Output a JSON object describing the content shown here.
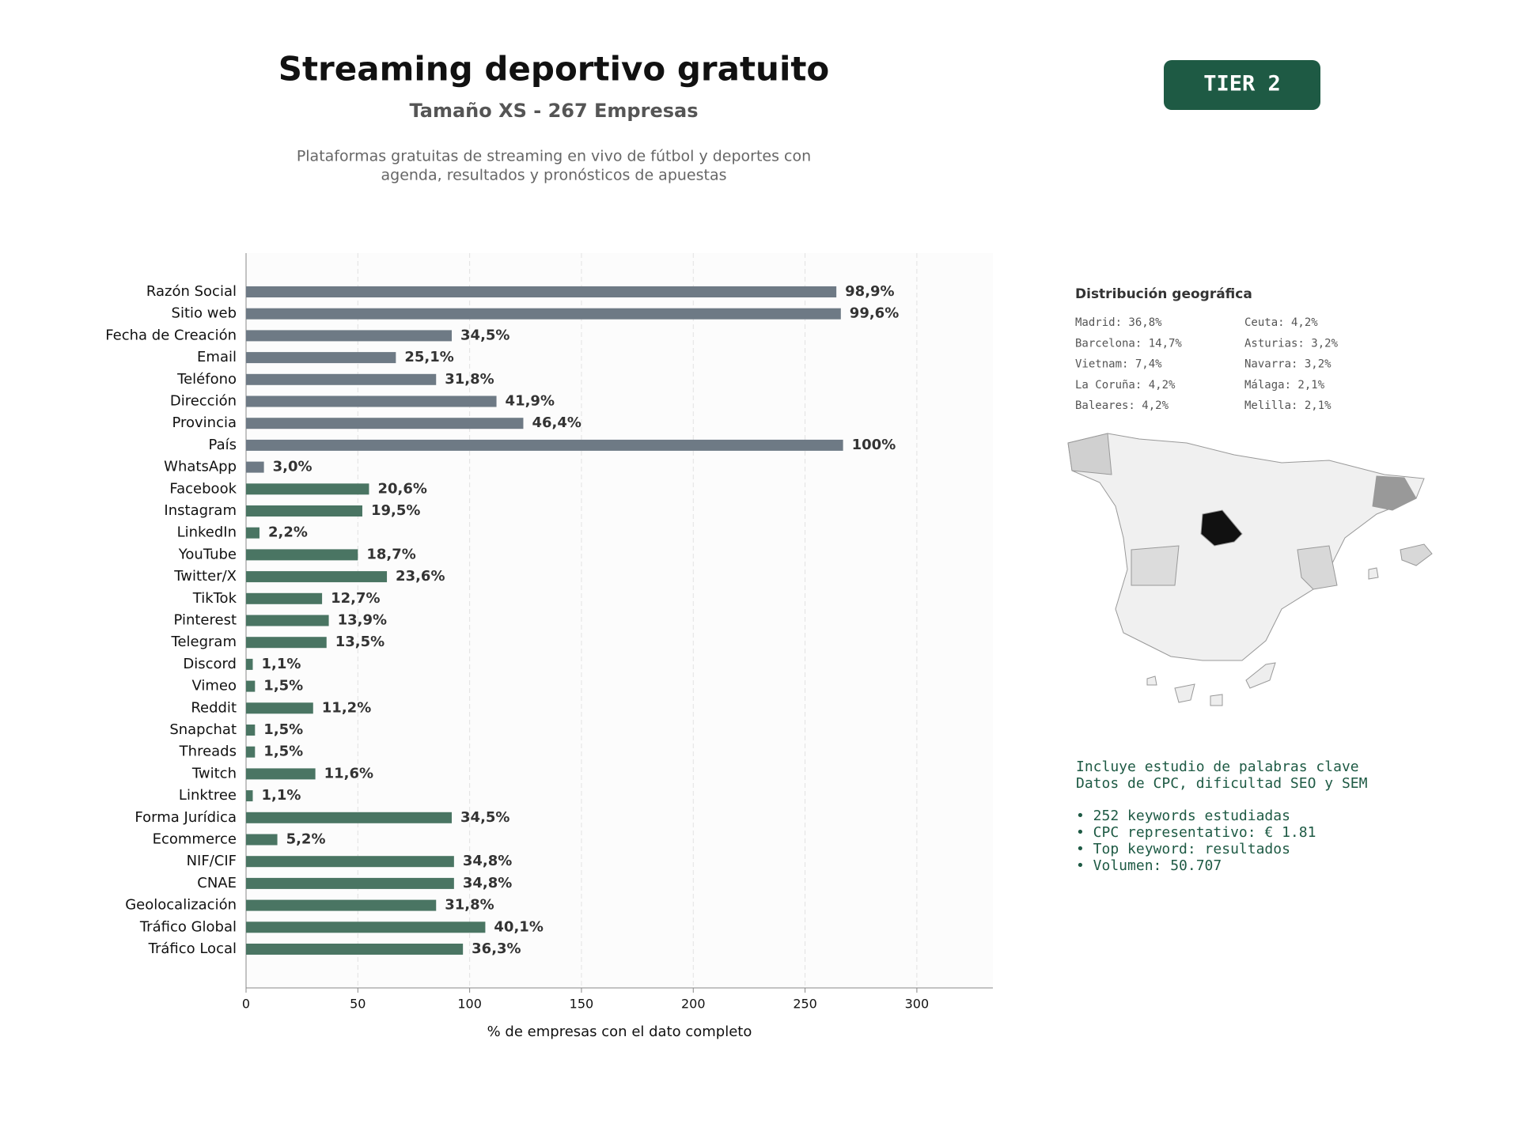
{
  "chart_data": {
    "type": "barh",
    "title": "Streaming deportivo gratuito",
    "subtitle": "Tamaño XS - 267 Empresas",
    "description": [
      "Plataformas gratuitas de streaming en vivo de fútbol y deportes con",
      "agenda, resultados y pronósticos de apuestas"
    ],
    "xlabel": "% de empresas con el dato completo",
    "categories": [
      "Razón Social",
      "Sitio web",
      "Fecha de Creación",
      "Email",
      "Teléfono",
      "Dirección",
      "Provincia",
      "País",
      "WhatsApp",
      "Facebook",
      "Instagram",
      "LinkedIn",
      "YouTube",
      "Twitter/X",
      "TikTok",
      "Pinterest",
      "Telegram",
      "Discord",
      "Vimeo",
      "Reddit",
      "Snapchat",
      "Threads",
      "Twitch",
      "Linktree",
      "Forma Jurídica",
      "Ecommerce",
      "NIF/CIF",
      "CNAE",
      "Geolocalización",
      "Tráfico Global",
      "Tráfico Local"
    ],
    "values": [
      264,
      266,
      92,
      67,
      85,
      112,
      124,
      267,
      8,
      55,
      52,
      6,
      50,
      63,
      34,
      37,
      36,
      3,
      4,
      30,
      4,
      4,
      31,
      3,
      92,
      14,
      93,
      93,
      85,
      107,
      97
    ],
    "value_labels": [
      "98,9%",
      "99,6%",
      "34,5%",
      "25,1%",
      "31,8%",
      "41,9%",
      "46,4%",
      "100%",
      "3,0%",
      "20,6%",
      "19,5%",
      "2,2%",
      "18,7%",
      "23,6%",
      "12,7%",
      "13,9%",
      "13,5%",
      "1,1%",
      "1,5%",
      "11,2%",
      "1,5%",
      "1,5%",
      "11,6%",
      "1,1%",
      "34,5%",
      "5,2%",
      "34,8%",
      "34,8%",
      "31,8%",
      "40,1%",
      "36,3%"
    ],
    "colors": [
      "#6e7a85",
      "#6e7a85",
      "#6e7a85",
      "#6e7a85",
      "#6e7a85",
      "#6e7a85",
      "#6e7a85",
      "#6e7a85",
      "#6e7a85",
      "#4a7563",
      "#4a7563",
      "#4a7563",
      "#4a7563",
      "#4a7563",
      "#4a7563",
      "#4a7563",
      "#4a7563",
      "#4a7563",
      "#4a7563",
      "#4a7563",
      "#4a7563",
      "#4a7563",
      "#4a7563",
      "#4a7563",
      "#4a7563",
      "#4a7563",
      "#4a7563",
      "#4a7563",
      "#4a7563",
      "#4a7563",
      "#4a7563"
    ],
    "xlim": [
      0,
      334
    ],
    "xticks": [
      0,
      50,
      100,
      150,
      200,
      250,
      300
    ],
    "grid": true
  },
  "badge": "TIER 2",
  "geo": {
    "title": "Distribución geográfica",
    "items": [
      "Madrid: 36,8%",
      "Barcelona: 14,7%",
      "Vietnam: 7,4%",
      "La Coruña: 4,2%",
      "Baleares: 4,2%",
      "Ceuta: 4,2%",
      "Asturias: 3,2%",
      "Navarra: 3,2%",
      "Málaga: 2,1%",
      "Melilla: 2,1%"
    ]
  },
  "notes": [
    "Incluye estudio de palabras clave",
    "Datos de CPC, dificultad SEO y SEM",
    "• 252 keywords estudiadas",
    "• CPC representativo: € 1.81",
    "• Top keyword: resultados",
    "• Volumen: 50.707"
  ]
}
